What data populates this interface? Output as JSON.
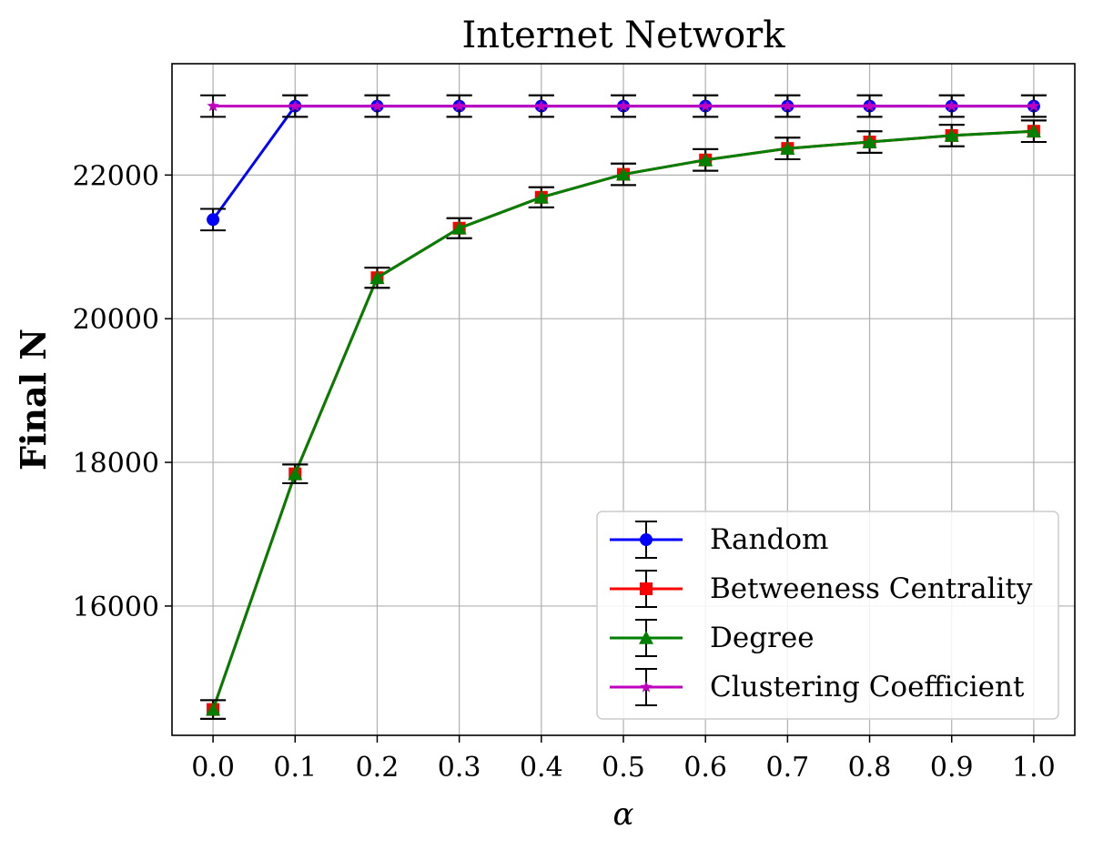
{
  "chart_data": {
    "type": "line",
    "title": "Internet Network",
    "xlabel": "α",
    "ylabel": "Final N",
    "x": [
      0.0,
      0.1,
      0.2,
      0.3,
      0.4,
      0.5,
      0.6,
      0.7,
      0.8,
      0.9,
      1.0
    ],
    "x_tick_labels": [
      "0.0",
      "0.1",
      "0.2",
      "0.3",
      "0.4",
      "0.5",
      "0.6",
      "0.7",
      "0.8",
      "0.9",
      "1.0"
    ],
    "y_ticks": [
      16000,
      18000,
      20000,
      22000
    ],
    "xlim": [
      -0.05,
      1.05
    ],
    "ylim": [
      14200,
      23550
    ],
    "grid": true,
    "legend_position": "bottom-right",
    "series": [
      {
        "name": "Random",
        "color": "#0000ff",
        "marker": "circle",
        "values": [
          21380,
          22960,
          22960,
          22960,
          22960,
          22960,
          22960,
          22960,
          22960,
          22960,
          22960
        ],
        "errors": [
          150,
          150,
          150,
          150,
          150,
          150,
          150,
          150,
          150,
          150,
          150
        ]
      },
      {
        "name": "Betweeness Centrality",
        "color": "#ff0000",
        "marker": "square",
        "values": [
          14560,
          17840,
          20570,
          21260,
          21690,
          22010,
          22210,
          22370,
          22460,
          22550,
          22610
        ],
        "errors": [
          130,
          130,
          140,
          140,
          140,
          150,
          150,
          150,
          150,
          150,
          150
        ]
      },
      {
        "name": "Degree",
        "color": "#007f00",
        "marker": "triangle",
        "values": [
          14560,
          17840,
          20570,
          21260,
          21690,
          22010,
          22210,
          22370,
          22460,
          22550,
          22610
        ],
        "errors": [
          130,
          130,
          140,
          140,
          140,
          150,
          150,
          150,
          150,
          150,
          150
        ]
      },
      {
        "name": "Clustering Coefficient",
        "color": "#bf00bf",
        "marker": "star",
        "values": [
          22960,
          22960,
          22960,
          22960,
          22960,
          22960,
          22960,
          22960,
          22960,
          22960,
          22960
        ],
        "errors": [
          150,
          150,
          150,
          150,
          150,
          150,
          150,
          150,
          150,
          150,
          150
        ]
      }
    ]
  }
}
